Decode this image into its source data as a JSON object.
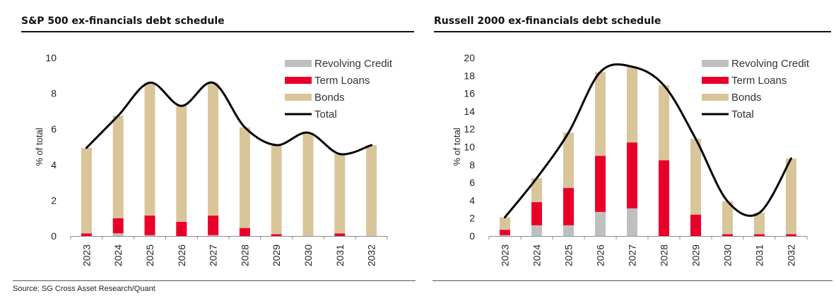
{
  "source_note": "Source: SG Cross Asset Research/Quant",
  "chart_data": [
    {
      "type": "bar",
      "stacked": true,
      "title": "S&P 500 ex-financials debt schedule",
      "ylabel": "% of total",
      "xlabel": "",
      "ylim": [
        0,
        10
      ],
      "yticks": [
        0,
        2,
        4,
        6,
        8,
        10
      ],
      "categories": [
        "2023",
        "2024",
        "2025",
        "2026",
        "2027",
        "2028",
        "2029",
        "2030",
        "2031",
        "2032"
      ],
      "series": [
        {
          "name": "Revolving Credit",
          "color": "#bfbfbf",
          "values": [
            0,
            0.15,
            0.05,
            0,
            0.05,
            0,
            0,
            0,
            0,
            0
          ]
        },
        {
          "name": "Term Loans",
          "color": "#e8002a",
          "values": [
            0.15,
            0.85,
            1.1,
            0.8,
            1.1,
            0.45,
            0.1,
            0,
            0.15,
            0
          ]
        },
        {
          "name": "Bonds",
          "color": "#d9c59a",
          "values": [
            4.8,
            5.75,
            7.45,
            6.5,
            7.45,
            5.65,
            5.0,
            5.8,
            4.45,
            5.1
          ]
        }
      ],
      "total": {
        "name": "Total",
        "color": "#000000",
        "values": [
          4.95,
          6.75,
          8.6,
          7.3,
          8.6,
          6.1,
          5.1,
          5.8,
          4.6,
          5.1
        ]
      },
      "legend_position": "top-right",
      "grid": false
    },
    {
      "type": "bar",
      "stacked": true,
      "title": "Russell 2000 ex-financials debt schedule",
      "ylabel": "% of total",
      "xlabel": "",
      "ylim": [
        0,
        20
      ],
      "yticks": [
        0,
        2,
        4,
        6,
        8,
        10,
        12,
        14,
        16,
        18,
        20
      ],
      "categories": [
        "2023",
        "2024",
        "2025",
        "2026",
        "2027",
        "2028",
        "2029",
        "2030",
        "2031",
        "2032"
      ],
      "series": [
        {
          "name": "Revolving Credit",
          "color": "#bfbfbf",
          "values": [
            0.1,
            1.2,
            1.2,
            2.7,
            3.1,
            0,
            0,
            0,
            0,
            0
          ]
        },
        {
          "name": "Term Loans",
          "color": "#e8002a",
          "values": [
            0.6,
            2.6,
            4.2,
            6.3,
            7.4,
            8.5,
            2.4,
            0.2,
            0.2,
            0.2
          ]
        },
        {
          "name": "Bonds",
          "color": "#d9c59a",
          "values": [
            1.4,
            2.7,
            6.2,
            9.4,
            8.5,
            8.4,
            8.5,
            3.7,
            2.4,
            8.5
          ]
        }
      ],
      "total": {
        "name": "Total",
        "color": "#000000",
        "values": [
          2.1,
          6.5,
          11.6,
          18.4,
          19.0,
          16.9,
          10.9,
          3.9,
          2.6,
          8.7
        ]
      },
      "legend_position": "top-right",
      "grid": false
    }
  ]
}
